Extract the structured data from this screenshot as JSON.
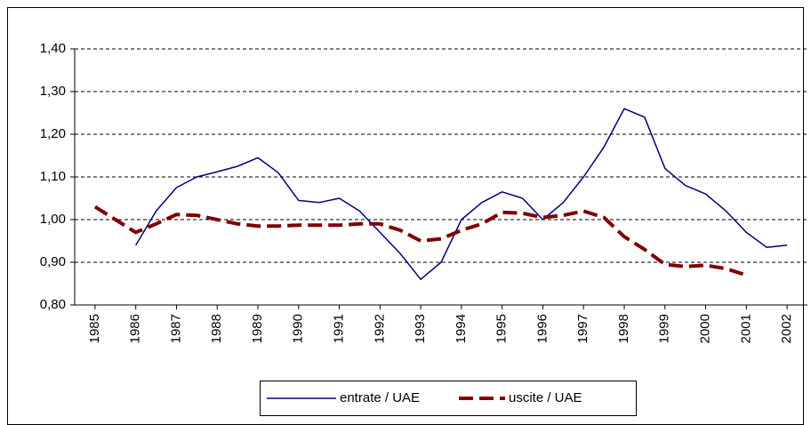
{
  "chart_data": {
    "type": "line",
    "x": [
      1985,
      1985.5,
      1986,
      1986.5,
      1987,
      1987.5,
      1988,
      1988.5,
      1989,
      1989.5,
      1990,
      1990.5,
      1991,
      1991.5,
      1992,
      1992.5,
      1993,
      1993.5,
      1994,
      1994.5,
      1995,
      1995.5,
      1996,
      1996.5,
      1997,
      1997.5,
      1998,
      1998.5,
      1999,
      1999.5,
      2000,
      2000.5,
      2001,
      2001.5,
      2002
    ],
    "series": [
      {
        "name": "entrate / UAE",
        "color": "#000080",
        "dashed": false,
        "values": [
          null,
          null,
          0.94,
          1.02,
          1.075,
          1.1,
          1.112,
          1.125,
          1.145,
          1.11,
          1.045,
          1.04,
          1.05,
          1.02,
          0.97,
          0.92,
          0.86,
          0.9,
          1.0,
          1.04,
          1.065,
          1.05,
          1.0,
          1.04,
          1.1,
          1.17,
          1.26,
          1.24,
          1.12,
          1.08,
          1.06,
          1.02,
          0.97,
          0.935,
          0.94
        ]
      },
      {
        "name": "uscite / UAE",
        "color": "#800000",
        "dashed": true,
        "values": [
          1.03,
          1.0,
          0.97,
          0.99,
          1.012,
          1.01,
          1.0,
          0.99,
          0.985,
          0.985,
          0.987,
          0.987,
          0.987,
          0.99,
          0.99,
          0.975,
          0.95,
          0.955,
          0.975,
          0.99,
          1.017,
          1.015,
          1.005,
          1.01,
          1.02,
          1.005,
          0.96,
          0.93,
          0.895,
          0.89,
          0.893,
          0.885,
          0.87,
          null,
          null
        ]
      }
    ],
    "xlim": [
      1984.5,
      2002.5
    ],
    "xticks": [
      1985,
      1986,
      1987,
      1988,
      1989,
      1990,
      1991,
      1992,
      1993,
      1994,
      1995,
      1996,
      1997,
      1998,
      1999,
      2000,
      2001,
      2002
    ],
    "ylim": [
      0.8,
      1.4
    ],
    "yticks": [
      {
        "value": 0.8,
        "label": "0,80"
      },
      {
        "value": 0.9,
        "label": "0,90"
      },
      {
        "value": 1.0,
        "label": "1,00"
      },
      {
        "value": 1.1,
        "label": "1,10"
      },
      {
        "value": 1.2,
        "label": "1,20"
      },
      {
        "value": 1.3,
        "label": "1,30"
      },
      {
        "value": 1.4,
        "label": "1,40"
      }
    ],
    "grid": true,
    "legend": "bottom"
  }
}
